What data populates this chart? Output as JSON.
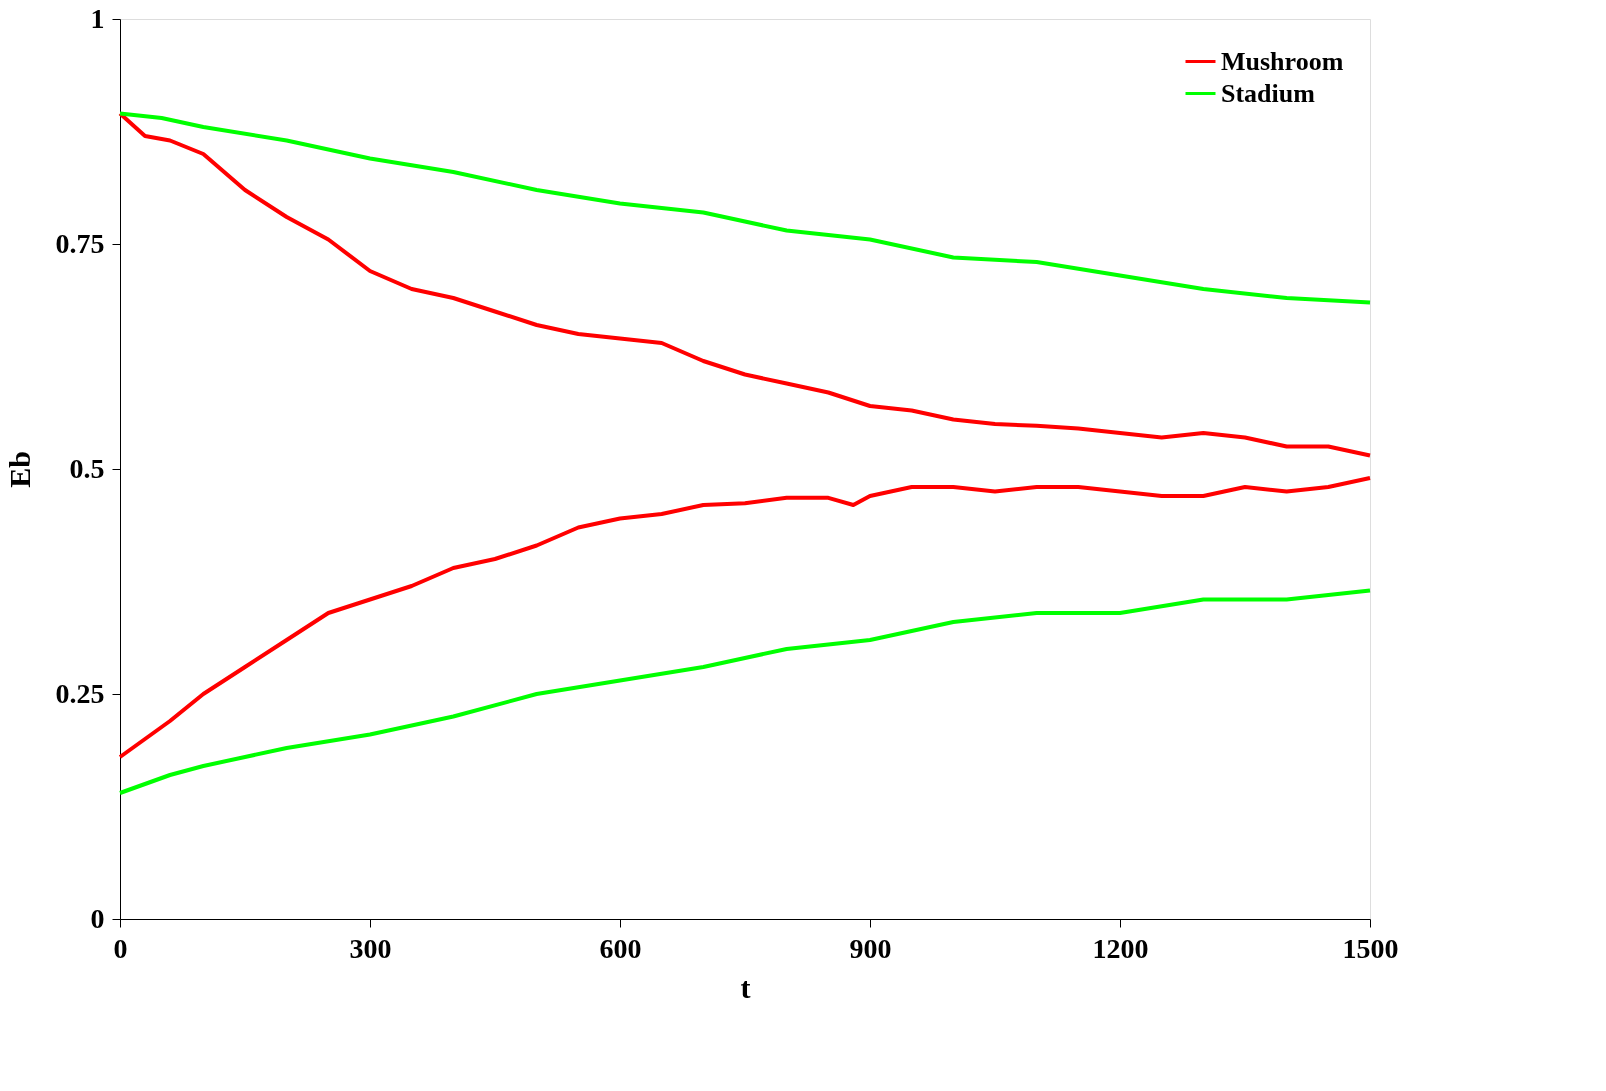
{
  "chart_data": {
    "type": "line",
    "xlabel": "t",
    "ylabel": "Eb",
    "xlim": [
      0,
      1500
    ],
    "ylim": [
      0,
      1
    ],
    "xticks": [
      0,
      300,
      600,
      900,
      1200,
      1500
    ],
    "yticks": [
      0,
      0.25,
      0.5,
      0.75,
      1
    ],
    "grid": false,
    "legend": "top right",
    "marker": "none",
    "series": [
      {
        "name": "Mushroom",
        "color": "#ff0000",
        "x": [
          0,
          30,
          60,
          100,
          150,
          200,
          250,
          300,
          350,
          400,
          450,
          500,
          550,
          600,
          650,
          700,
          750,
          800,
          850,
          900,
          950,
          1000,
          1050,
          1100,
          1150,
          1200,
          1250,
          1300,
          1350,
          1400,
          1450,
          1500
        ],
        "values": [
          0.895,
          0.87,
          0.865,
          0.85,
          0.81,
          0.78,
          0.755,
          0.72,
          0.7,
          0.69,
          0.675,
          0.66,
          0.65,
          0.645,
          0.64,
          0.62,
          0.605,
          0.595,
          0.585,
          0.57,
          0.565,
          0.555,
          0.55,
          0.548,
          0.545,
          0.54,
          0.535,
          0.54,
          0.535,
          0.525,
          0.525,
          0.515
        ]
      },
      {
        "color": "#ff0000",
        "x": [
          0,
          30,
          60,
          100,
          150,
          200,
          250,
          300,
          350,
          400,
          450,
          500,
          550,
          600,
          650,
          700,
          750,
          800,
          850,
          880,
          900,
          950,
          1000,
          1050,
          1100,
          1150,
          1200,
          1250,
          1300,
          1350,
          1400,
          1450,
          1500
        ],
        "values": [
          0.18,
          0.2,
          0.22,
          0.25,
          0.28,
          0.31,
          0.34,
          0.355,
          0.37,
          0.39,
          0.4,
          0.415,
          0.435,
          0.445,
          0.45,
          0.46,
          0.462,
          0.468,
          0.468,
          0.46,
          0.47,
          0.48,
          0.48,
          0.475,
          0.48,
          0.48,
          0.475,
          0.47,
          0.47,
          0.48,
          0.475,
          0.48,
          0.49
        ]
      },
      {
        "name": "Stadium",
        "color": "#00ff00",
        "x": [
          0,
          50,
          100,
          200,
          300,
          400,
          500,
          600,
          700,
          800,
          900,
          1000,
          1100,
          1200,
          1300,
          1400,
          1500
        ],
        "values": [
          0.895,
          0.89,
          0.88,
          0.865,
          0.845,
          0.83,
          0.81,
          0.795,
          0.785,
          0.765,
          0.755,
          0.735,
          0.73,
          0.715,
          0.7,
          0.69,
          0.685
        ]
      },
      {
        "color": "#00ff00",
        "x": [
          0,
          30,
          60,
          100,
          150,
          200,
          300,
          400,
          500,
          600,
          700,
          800,
          900,
          1000,
          1100,
          1200,
          1300,
          1400,
          1500
        ],
        "values": [
          0.14,
          0.15,
          0.16,
          0.17,
          0.18,
          0.19,
          0.205,
          0.225,
          0.25,
          0.265,
          0.28,
          0.3,
          0.31,
          0.33,
          0.34,
          0.34,
          0.355,
          0.355,
          0.365
        ]
      }
    ]
  }
}
